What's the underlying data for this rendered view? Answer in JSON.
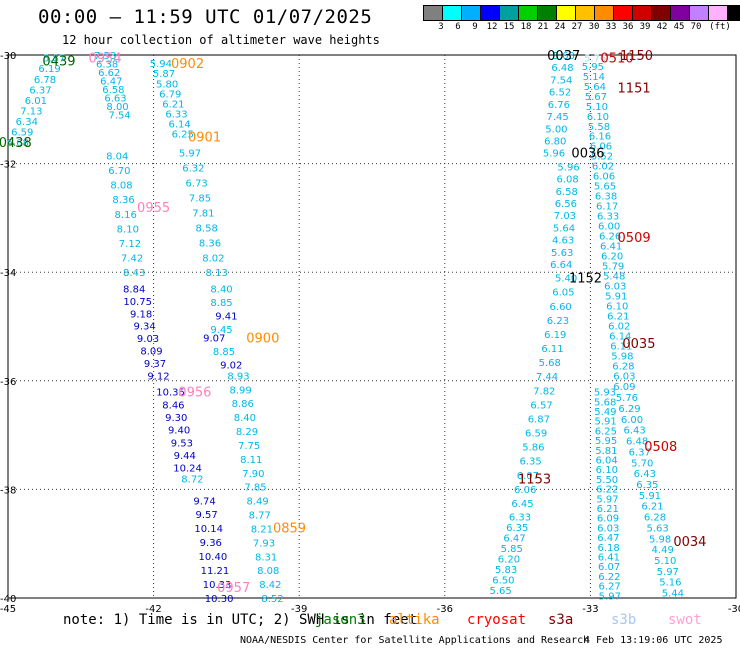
{
  "title": "00:00 – 11:59 UTC 01/07/2025",
  "subtitle": "12 hour collection of altimeter wave heights",
  "scale": {
    "unit": "(ft)",
    "labels": [
      "3",
      "6",
      "9",
      "12",
      "15",
      "18",
      "21",
      "24",
      "27",
      "30",
      "33",
      "36",
      "39",
      "42",
      "45",
      "70"
    ],
    "colors": [
      "#808080",
      "#00ffff",
      "#00b0ff",
      "#0000ff",
      "#00a0a0",
      "#00d000",
      "#008000",
      "#ffff00",
      "#ffc000",
      "#ff8c00",
      "#ff0000",
      "#d00000",
      "#800000",
      "#8000a0",
      "#c080ff",
      "#ffb0ff",
      "#000000"
    ]
  },
  "map": {
    "lon_ticks": [
      "-45",
      "-42",
      "-39",
      "-36",
      "-33",
      "-30"
    ],
    "lat_ticks": [
      "-30",
      "-32",
      "-34",
      "-36",
      "-38",
      "-40"
    ],
    "lon_range": [
      -45,
      -30
    ],
    "lat_range": [
      -40,
      -30
    ]
  },
  "tracks": [
    {
      "color": "#00b8e8",
      "lon0": -44.05,
      "lat0": -30.05,
      "lon1": -44.8,
      "lat1": -31.6,
      "values": [
        "5.87",
        "6.19",
        "6.78",
        "6.37",
        "6.01",
        "7.13",
        "6.34",
        "6.59",
        "6.68"
      ]
    },
    {
      "color": "#00b8e8",
      "lon0": -43.0,
      "lat0": -30.0,
      "lon1": -42.7,
      "lat1": -31.1,
      "values": [
        "7.53",
        "6.38",
        "6.62",
        "6.47",
        "6.58",
        "6.63",
        "8.00",
        "7.54"
      ]
    },
    {
      "color": "#00b8e8",
      "lon0": -42.75,
      "lat0": -31.85,
      "lon1": -42.4,
      "lat1": -34.0,
      "values": [
        "8.04",
        "6.70",
        "8.08",
        "8.36",
        "8.16",
        "8.10",
        "7.12",
        "7.42",
        "8.43"
      ]
    },
    {
      "color": "#0000cc",
      "lon0": -42.4,
      "lat0": -34.3,
      "lon1": -41.9,
      "lat1": -35.9,
      "values": [
        "8.84",
        "10.75",
        "9.18",
        "9.34",
        "9.03",
        "8.09",
        "9.37",
        "9.12"
      ]
    },
    {
      "color": "#0000cc",
      "lon0": -41.65,
      "lat0": -36.2,
      "lon1": -41.3,
      "lat1": -37.6,
      "values": [
        "10.35",
        "8.46",
        "9.30",
        "9.40",
        "9.53",
        "9.44",
        "10.24"
      ]
    },
    {
      "color": "#00b8e8",
      "lon0": -41.2,
      "lat0": -37.8,
      "lon1": -41.2,
      "lat1": -37.8,
      "values": [
        "8.72"
      ]
    },
    {
      "color": "#0000cc",
      "lon0": -40.95,
      "lat0": -38.2,
      "lon1": -40.65,
      "lat1": -40.0,
      "values": [
        "9.74",
        "9.57",
        "10.14",
        "9.36",
        "10.40",
        "11.21",
        "10.33",
        "10.30"
      ]
    },
    {
      "color": "#00b8e8",
      "lon0": -41.85,
      "lat0": -30.15,
      "lon1": -41.4,
      "lat1": -31.45,
      "values": [
        "5.94",
        "5.87",
        "5.80",
        "6.79",
        "6.21",
        "6.33",
        "6.14",
        "6.25"
      ]
    },
    {
      "color": "#00b8e8",
      "lon0": -41.25,
      "lat0": -31.8,
      "lon1": -40.7,
      "lat1": -34.0,
      "values": [
        "5.97",
        "6.32",
        "6.73",
        "7.85",
        "7.81",
        "8.58",
        "8.36",
        "8.02",
        "8.13"
      ]
    },
    {
      "color": "#00b8e8",
      "lon0": -40.6,
      "lat0": -34.3,
      "lon1": -40.6,
      "lat1": -34.55,
      "values": [
        "8.40",
        "8.85"
      ]
    },
    {
      "color": "#0000cc",
      "lon0": -40.5,
      "lat0": -34.8,
      "lon1": -40.5,
      "lat1": -34.8,
      "values": [
        "9.41"
      ]
    },
    {
      "color": "#00b8e8",
      "lon0": -40.6,
      "lat0": -35.05,
      "lon1": -40.6,
      "lat1": -35.05,
      "values": [
        "9.45"
      ]
    },
    {
      "color": "#0000cc",
      "lon0": -40.75,
      "lat0": -35.2,
      "lon1": -40.75,
      "lat1": -35.2,
      "values": [
        "9.07"
      ]
    },
    {
      "color": "#00b8e8",
      "lon0": -40.55,
      "lat0": -35.45,
      "lon1": -40.55,
      "lat1": -35.45,
      "values": [
        "8.85"
      ]
    },
    {
      "color": "#0000cc",
      "lon0": -40.4,
      "lat0": -35.7,
      "lon1": -40.4,
      "lat1": -35.7,
      "values": [
        "9.02"
      ]
    },
    {
      "color": "#00b8e8",
      "lon0": -40.25,
      "lat0": -35.9,
      "lon1": -39.55,
      "lat1": -40.0,
      "values": [
        "8.93",
        "8.99",
        "8.86",
        "8.40",
        "8.29",
        "7.75",
        "8.11",
        "7.90",
        "7.85",
        "8.49",
        "8.77",
        "8.21",
        "7.93",
        "8.31",
        "8.08",
        "8.42",
        "8.52"
      ]
    },
    {
      "color": "#00b8e8",
      "lon0": -33.55,
      "lat0": -30.0,
      "lon1": -33.75,
      "lat1": -31.8,
      "values": [
        "5.63",
        "6.48",
        "7.54",
        "6.52",
        "6.76",
        "7.45",
        "5.00",
        "6.80",
        "5.96"
      ]
    },
    {
      "color": "#00b8e8",
      "lon0": -33.45,
      "lat0": -32.05,
      "lon1": -33.6,
      "lat1": -33.85,
      "values": [
        "5.96",
        "6.08",
        "6.58",
        "6.56",
        "7.03",
        "5.64",
        "4.63",
        "5.63",
        "6.64"
      ]
    },
    {
      "color": "#00b8e8",
      "lon0": -33.5,
      "lat0": -34.1,
      "lon1": -34.4,
      "lat1": -38.25,
      "values": [
        "5.40",
        "6.05",
        "6.60",
        "6.23",
        "6.19",
        "6.11",
        "5.68",
        "7.44",
        "7.82",
        "6.57",
        "6.87",
        "6.59",
        "5.86",
        "6.35",
        "6.07",
        "6.06",
        "6.45"
      ]
    },
    {
      "color": "#00b8e8",
      "lon0": -34.45,
      "lat0": -38.5,
      "lon1": -34.85,
      "lat1": -39.85,
      "values": [
        "6.33",
        "6.35",
        "6.47",
        "5.85",
        "6.20",
        "5.83",
        "6.50",
        "5.65"
      ]
    },
    {
      "color": "#a6d8ee",
      "lon0": -32.9,
      "lat0": -30.05,
      "lon1": -32.9,
      "lat1": -30.05,
      "values": [
        "5.76"
      ]
    },
    {
      "color": "#00b8e8",
      "lon0": -32.95,
      "lat0": -30.2,
      "lon1": -32.3,
      "lat1": -35.9,
      "values": [
        "5.95",
        "5.14",
        "5.64",
        "5.67",
        "5.10",
        "6.10",
        "5.58",
        "6.16",
        "6.06",
        "5.52",
        "6.02",
        "6.06",
        "5.65",
        "6.38",
        "6.17",
        "6.33",
        "6.00",
        "6.26",
        "6.41",
        "6.20",
        "5.79",
        "5.48",
        "6.03",
        "5.91",
        "6.10",
        "6.21",
        "6.02",
        "6.14",
        "6.11",
        "5.98",
        "6.28",
        "6.03"
      ]
    },
    {
      "color": "#00b8e8",
      "lon0": -32.3,
      "lat0": -36.1,
      "lon1": -31.3,
      "lat1": -39.9,
      "values": [
        "6.09",
        "5.76",
        "6.29",
        "6.00",
        "6.43",
        "6.48",
        "6.37",
        "5.70",
        "6.43",
        "6.35",
        "5.91",
        "6.21",
        "6.28",
        "5.63",
        "5.98",
        "4.49",
        "5.10",
        "5.97",
        "5.16",
        "5.44"
      ]
    },
    {
      "color": "#00b8e8",
      "lon0": -32.7,
      "lat0": -36.2,
      "lon1": -32.6,
      "lat1": -39.95,
      "values": [
        "5.93",
        "5.68",
        "5.49",
        "5.91",
        "6.25",
        "5.95",
        "5.81",
        "6.04",
        "6.10",
        "5.50",
        "6.22",
        "5.97",
        "6.21",
        "6.09",
        "6.03",
        "6.47",
        "6.18",
        "6.41",
        "6.07",
        "6.22",
        "6.27",
        "5.97"
      ]
    }
  ],
  "time_labels": [
    {
      "text": "0954",
      "color": "#ff80c0",
      "lon": -43.0,
      "lat": -30.05
    },
    {
      "text": "0439",
      "color": "#006400",
      "lon": -43.95,
      "lat": -30.1
    },
    {
      "text": "0902",
      "color": "#ff8c00",
      "lon": -41.3,
      "lat": -30.15
    },
    {
      "text": "0901",
      "color": "#ff8c00",
      "lon": -40.95,
      "lat": -31.5
    },
    {
      "text": "0438",
      "color": "#006400",
      "lon": -44.85,
      "lat": -31.6
    },
    {
      "text": "0955",
      "color": "#ff80c0",
      "lon": -42.0,
      "lat": -32.8
    },
    {
      "text": "0900",
      "color": "#ff8c00",
      "lon": -39.75,
      "lat": -35.2
    },
    {
      "text": "0956",
      "color": "#ff80c0",
      "lon": -41.15,
      "lat": -36.2
    },
    {
      "text": "0859",
      "color": "#ff8c00",
      "lon": -39.2,
      "lat": -38.7
    },
    {
      "text": "0957",
      "color": "#ff80c0",
      "lon": -40.35,
      "lat": -39.8
    },
    {
      "text": "0037",
      "color": "#000000",
      "lon": -33.55,
      "lat": -30.0
    },
    {
      "text": "1150",
      "color": "#800000",
      "lon": -32.05,
      "lat": -30.0
    },
    {
      "text": "0510",
      "color": "#cc0000",
      "lon": -32.45,
      "lat": -30.05
    },
    {
      "text": "1151",
      "color": "#800000",
      "lon": -32.1,
      "lat": -30.6
    },
    {
      "text": "0036",
      "color": "#000000",
      "lon": -33.05,
      "lat": -31.8
    },
    {
      "text": "0509",
      "color": "#cc0000",
      "lon": -32.1,
      "lat": -33.35
    },
    {
      "text": "1152",
      "color": "#000000",
      "lon": -33.1,
      "lat": -34.1
    },
    {
      "text": "0035",
      "color": "#800000",
      "lon": -32.0,
      "lat": -35.3
    },
    {
      "text": "0508",
      "color": "#cc0000",
      "lon": -31.55,
      "lat": -37.2
    },
    {
      "text": "1153",
      "color": "#800000",
      "lon": -34.15,
      "lat": -37.8
    },
    {
      "text": "0034",
      "color": "#800000",
      "lon": -30.95,
      "lat": -38.95
    }
  ],
  "note": {
    "text": "note: 1) Time is in UTC; 2) SWH is in feet",
    "sats": [
      {
        "name": "jason3",
        "color": "#008000"
      },
      {
        "name": "altika",
        "color": "#ff8c00"
      },
      {
        "name": "cryosat",
        "color": "#ff0000"
      },
      {
        "name": "s3a",
        "color": "#800000"
      },
      {
        "name": "s3b",
        "color": "#a6c8ee"
      },
      {
        "name": "swot",
        "color": "#ffa0d8"
      }
    ]
  },
  "footer": {
    "credit": "NOAA/NESDIS Center for Satellite Applications and Research",
    "timestamp": "4 Feb 13:19:06 UTC 2025"
  }
}
